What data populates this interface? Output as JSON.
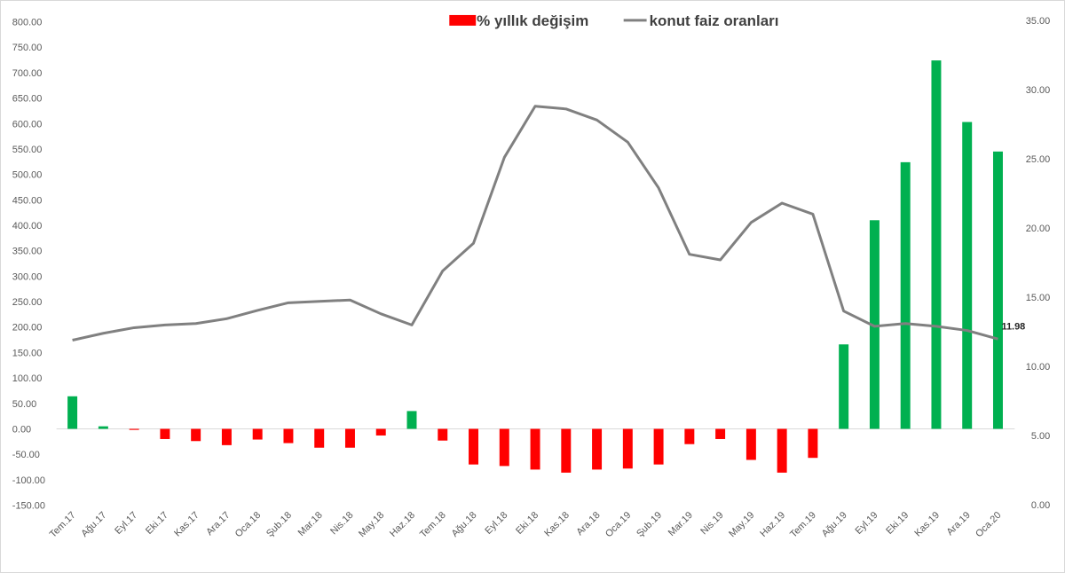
{
  "chart_data": {
    "type": "bar+line",
    "categories": [
      "Tem.17",
      "Ağu.17",
      "Eyl.17",
      "Eki.17",
      "Kas.17",
      "Ara.17",
      "Oca.18",
      "Şub.18",
      "Mar.18",
      "Nis.18",
      "May.18",
      "Haz.18",
      "Tem.18",
      "Ağu.18",
      "Eyl.18",
      "Eki.18",
      "Kas.18",
      "Ara.18",
      "Oca.19",
      "Şub.19",
      "Mar.19",
      "Nis.19",
      "May.19",
      "Haz.19",
      "Tem.19",
      "Ağu.19",
      "Eyl.19",
      "Eki.19",
      "Kas.19",
      "Ara.19",
      "Oca.20"
    ],
    "series": [
      {
        "name": "% yıllık değişim",
        "type": "bar",
        "axis": "left",
        "values": [
          64,
          5,
          -2,
          -20,
          -24,
          -32,
          -21,
          -28,
          -37,
          -37,
          -13,
          35,
          -23,
          -70,
          -73,
          -80,
          -86,
          -80,
          -78,
          -70,
          -30,
          -20,
          -61,
          -86,
          -57,
          166,
          410,
          524,
          724,
          603,
          545
        ]
      },
      {
        "name": "konut faiz oranları",
        "type": "line",
        "axis": "right",
        "values": [
          11.9,
          12.4,
          12.8,
          13.0,
          13.1,
          13.45,
          14.05,
          14.6,
          14.7,
          14.8,
          13.8,
          13.0,
          16.9,
          18.9,
          25.1,
          28.8,
          28.6,
          27.8,
          26.2,
          22.9,
          18.1,
          17.7,
          20.4,
          21.8,
          21.0,
          14.0,
          12.9,
          13.1,
          12.9,
          12.6,
          11.98
        ]
      }
    ],
    "y_left": {
      "min": -150,
      "max": 800,
      "step": 50,
      "tick_labels": [
        "-150.00",
        "-100.00",
        "-50.00",
        "0.00",
        "50.00",
        "100.00",
        "150.00",
        "200.00",
        "250.00",
        "300.00",
        "350.00",
        "400.00",
        "450.00",
        "500.00",
        "550.00",
        "600.00",
        "650.00",
        "700.00",
        "750.00",
        "800.00"
      ]
    },
    "y_right": {
      "min": 0,
      "max": 35,
      "step": 5,
      "tick_labels": [
        "0.00",
        "5.00",
        "10.00",
        "15.00",
        "20.00",
        "25.00",
        "30.00",
        "35.00"
      ]
    },
    "positive_color": "#00b050",
    "negative_color": "#ff0000",
    "line_color": "#808080",
    "last_value_label": "11.98",
    "legend_position": "top-center",
    "grid": false
  }
}
